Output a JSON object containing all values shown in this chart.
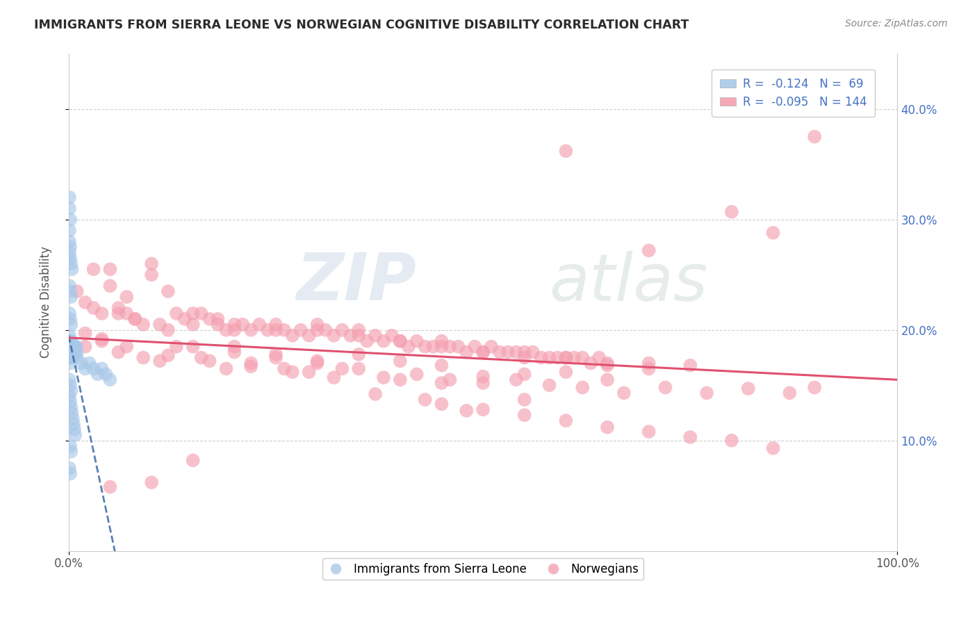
{
  "title": "IMMIGRANTS FROM SIERRA LEONE VS NORWEGIAN COGNITIVE DISABILITY CORRELATION CHART",
  "source": "Source: ZipAtlas.com",
  "ylabel": "Cognitive Disability",
  "watermark_zip": "ZIP",
  "watermark_atlas": "atlas",
  "legend_blue_r_val": "-0.124",
  "legend_blue_n_val": "69",
  "legend_pink_r_val": "-0.095",
  "legend_pink_n_val": "144",
  "blue_color": "#a8c8e8",
  "pink_color": "#f4a0b0",
  "blue_line_color": "#3060a0",
  "pink_line_color": "#e05070",
  "grid_color": "#d0d0d0",
  "background_color": "#ffffff",
  "blue_scatter": [
    [
      0.001,
      0.185
    ],
    [
      0.001,
      0.19
    ],
    [
      0.001,
      0.195
    ],
    [
      0.001,
      0.175
    ],
    [
      0.001,
      0.18
    ],
    [
      0.002,
      0.185
    ],
    [
      0.002,
      0.19
    ],
    [
      0.002,
      0.175
    ],
    [
      0.002,
      0.18
    ],
    [
      0.002,
      0.17
    ],
    [
      0.003,
      0.185
    ],
    [
      0.003,
      0.18
    ],
    [
      0.003,
      0.175
    ],
    [
      0.003,
      0.19
    ],
    [
      0.004,
      0.185
    ],
    [
      0.004,
      0.18
    ],
    [
      0.004,
      0.175
    ],
    [
      0.005,
      0.185
    ],
    [
      0.005,
      0.18
    ],
    [
      0.005,
      0.175
    ],
    [
      0.006,
      0.185
    ],
    [
      0.006,
      0.18
    ],
    [
      0.007,
      0.185
    ],
    [
      0.007,
      0.18
    ],
    [
      0.008,
      0.185
    ],
    [
      0.008,
      0.18
    ],
    [
      0.009,
      0.185
    ],
    [
      0.01,
      0.18
    ],
    [
      0.001,
      0.27
    ],
    [
      0.001,
      0.28
    ],
    [
      0.001,
      0.29
    ],
    [
      0.002,
      0.265
    ],
    [
      0.002,
      0.275
    ],
    [
      0.003,
      0.26
    ],
    [
      0.004,
      0.255
    ],
    [
      0.001,
      0.24
    ],
    [
      0.002,
      0.235
    ],
    [
      0.003,
      0.23
    ],
    [
      0.001,
      0.215
    ],
    [
      0.002,
      0.21
    ],
    [
      0.003,
      0.205
    ],
    [
      0.001,
      0.155
    ],
    [
      0.002,
      0.15
    ],
    [
      0.003,
      0.145
    ],
    [
      0.001,
      0.14
    ],
    [
      0.002,
      0.135
    ],
    [
      0.003,
      0.13
    ],
    [
      0.004,
      0.125
    ],
    [
      0.005,
      0.12
    ],
    [
      0.006,
      0.115
    ],
    [
      0.007,
      0.11
    ],
    [
      0.008,
      0.105
    ],
    [
      0.002,
      0.095
    ],
    [
      0.003,
      0.09
    ],
    [
      0.001,
      0.075
    ],
    [
      0.002,
      0.07
    ],
    [
      0.01,
      0.175
    ],
    [
      0.015,
      0.17
    ],
    [
      0.02,
      0.165
    ],
    [
      0.025,
      0.17
    ],
    [
      0.03,
      0.165
    ],
    [
      0.035,
      0.16
    ],
    [
      0.04,
      0.165
    ],
    [
      0.045,
      0.16
    ],
    [
      0.05,
      0.155
    ],
    [
      0.001,
      0.32
    ],
    [
      0.002,
      0.3
    ],
    [
      0.001,
      0.31
    ]
  ],
  "pink_scatter": [
    [
      0.01,
      0.235
    ],
    [
      0.02,
      0.225
    ],
    [
      0.03,
      0.22
    ],
    [
      0.04,
      0.215
    ],
    [
      0.05,
      0.255
    ],
    [
      0.06,
      0.22
    ],
    [
      0.07,
      0.215
    ],
    [
      0.08,
      0.21
    ],
    [
      0.09,
      0.205
    ],
    [
      0.1,
      0.26
    ],
    [
      0.11,
      0.205
    ],
    [
      0.12,
      0.2
    ],
    [
      0.13,
      0.215
    ],
    [
      0.14,
      0.21
    ],
    [
      0.15,
      0.205
    ],
    [
      0.16,
      0.215
    ],
    [
      0.17,
      0.21
    ],
    [
      0.18,
      0.205
    ],
    [
      0.19,
      0.2
    ],
    [
      0.2,
      0.2
    ],
    [
      0.21,
      0.205
    ],
    [
      0.22,
      0.2
    ],
    [
      0.23,
      0.205
    ],
    [
      0.24,
      0.2
    ],
    [
      0.25,
      0.205
    ],
    [
      0.26,
      0.2
    ],
    [
      0.27,
      0.195
    ],
    [
      0.28,
      0.2
    ],
    [
      0.29,
      0.195
    ],
    [
      0.3,
      0.2
    ],
    [
      0.31,
      0.2
    ],
    [
      0.32,
      0.195
    ],
    [
      0.33,
      0.2
    ],
    [
      0.34,
      0.195
    ],
    [
      0.35,
      0.2
    ],
    [
      0.36,
      0.19
    ],
    [
      0.37,
      0.195
    ],
    [
      0.38,
      0.19
    ],
    [
      0.39,
      0.195
    ],
    [
      0.4,
      0.19
    ],
    [
      0.41,
      0.185
    ],
    [
      0.42,
      0.19
    ],
    [
      0.43,
      0.185
    ],
    [
      0.44,
      0.185
    ],
    [
      0.45,
      0.19
    ],
    [
      0.46,
      0.185
    ],
    [
      0.47,
      0.185
    ],
    [
      0.48,
      0.18
    ],
    [
      0.49,
      0.185
    ],
    [
      0.5,
      0.18
    ],
    [
      0.51,
      0.185
    ],
    [
      0.52,
      0.18
    ],
    [
      0.53,
      0.18
    ],
    [
      0.54,
      0.18
    ],
    [
      0.55,
      0.18
    ],
    [
      0.56,
      0.18
    ],
    [
      0.57,
      0.175
    ],
    [
      0.58,
      0.175
    ],
    [
      0.59,
      0.175
    ],
    [
      0.6,
      0.175
    ],
    [
      0.61,
      0.175
    ],
    [
      0.62,
      0.175
    ],
    [
      0.63,
      0.17
    ],
    [
      0.64,
      0.175
    ],
    [
      0.65,
      0.17
    ],
    [
      0.06,
      0.215
    ],
    [
      0.08,
      0.21
    ],
    [
      0.1,
      0.25
    ],
    [
      0.12,
      0.235
    ],
    [
      0.15,
      0.215
    ],
    [
      0.18,
      0.21
    ],
    [
      0.2,
      0.205
    ],
    [
      0.03,
      0.255
    ],
    [
      0.05,
      0.24
    ],
    [
      0.07,
      0.23
    ],
    [
      0.25,
      0.2
    ],
    [
      0.3,
      0.205
    ],
    [
      0.35,
      0.195
    ],
    [
      0.4,
      0.19
    ],
    [
      0.45,
      0.185
    ],
    [
      0.5,
      0.18
    ],
    [
      0.55,
      0.175
    ],
    [
      0.7,
      0.17
    ],
    [
      0.75,
      0.168
    ],
    [
      0.6,
      0.175
    ],
    [
      0.65,
      0.168
    ],
    [
      0.7,
      0.165
    ],
    [
      0.15,
      0.185
    ],
    [
      0.2,
      0.18
    ],
    [
      0.25,
      0.175
    ],
    [
      0.3,
      0.17
    ],
    [
      0.35,
      0.165
    ],
    [
      0.02,
      0.185
    ],
    [
      0.04,
      0.19
    ],
    [
      0.06,
      0.18
    ],
    [
      0.09,
      0.175
    ],
    [
      0.11,
      0.172
    ],
    [
      0.13,
      0.185
    ],
    [
      0.16,
      0.175
    ],
    [
      0.19,
      0.165
    ],
    [
      0.22,
      0.17
    ],
    [
      0.26,
      0.165
    ],
    [
      0.29,
      0.162
    ],
    [
      0.33,
      0.165
    ],
    [
      0.38,
      0.157
    ],
    [
      0.42,
      0.16
    ],
    [
      0.46,
      0.155
    ],
    [
      0.5,
      0.152
    ],
    [
      0.54,
      0.155
    ],
    [
      0.58,
      0.15
    ],
    [
      0.62,
      0.148
    ],
    [
      0.67,
      0.143
    ],
    [
      0.72,
      0.148
    ],
    [
      0.77,
      0.143
    ],
    [
      0.82,
      0.147
    ],
    [
      0.87,
      0.143
    ],
    [
      0.9,
      0.148
    ],
    [
      0.8,
      0.1
    ],
    [
      0.85,
      0.093
    ],
    [
      0.75,
      0.103
    ],
    [
      0.7,
      0.108
    ],
    [
      0.65,
      0.112
    ],
    [
      0.6,
      0.118
    ],
    [
      0.55,
      0.123
    ],
    [
      0.5,
      0.128
    ],
    [
      0.45,
      0.133
    ],
    [
      0.9,
      0.375
    ],
    [
      0.8,
      0.307
    ],
    [
      0.7,
      0.272
    ],
    [
      0.85,
      0.288
    ],
    [
      0.6,
      0.362
    ],
    [
      0.55,
      0.137
    ],
    [
      0.48,
      0.127
    ],
    [
      0.43,
      0.137
    ],
    [
      0.37,
      0.142
    ],
    [
      0.32,
      0.157
    ],
    [
      0.27,
      0.162
    ],
    [
      0.22,
      0.167
    ],
    [
      0.17,
      0.172
    ],
    [
      0.12,
      0.177
    ],
    [
      0.07,
      0.185
    ],
    [
      0.04,
      0.192
    ],
    [
      0.02,
      0.197
    ],
    [
      0.05,
      0.058
    ],
    [
      0.1,
      0.062
    ],
    [
      0.15,
      0.082
    ],
    [
      0.4,
      0.155
    ],
    [
      0.45,
      0.152
    ],
    [
      0.5,
      0.158
    ],
    [
      0.55,
      0.16
    ],
    [
      0.6,
      0.162
    ],
    [
      0.65,
      0.155
    ],
    [
      0.2,
      0.185
    ],
    [
      0.25,
      0.178
    ],
    [
      0.3,
      0.172
    ],
    [
      0.35,
      0.178
    ],
    [
      0.4,
      0.172
    ],
    [
      0.45,
      0.168
    ]
  ],
  "xlim": [
    0,
    1
  ],
  "ylim": [
    0,
    0.45
  ],
  "yticks": [
    0.1,
    0.2,
    0.3,
    0.4
  ],
  "ytick_labels": [
    "10.0%",
    "20.0%",
    "30.0%",
    "40.0%"
  ],
  "title_color": "#2c2c2c",
  "source_color": "#888888",
  "accent_color": "#4472c4",
  "blue_trend_slope": -3.5,
  "blue_trend_intercept": 0.195,
  "pink_trend_slope": -0.038,
  "pink_trend_intercept": 0.193
}
